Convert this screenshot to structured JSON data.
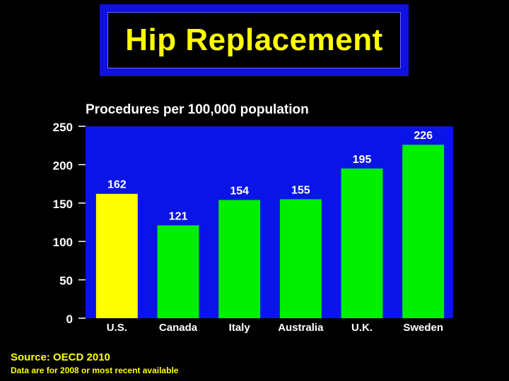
{
  "slide": {
    "title": "Hip Replacement",
    "source": "Source: OECD 2010",
    "note": "Data are for 2008 or most recent available"
  },
  "colors": {
    "background": "#000000",
    "title_frame": "#1010e0",
    "title_text": "#ffff00",
    "plot_background": "#0a14e6",
    "bar_default": "#00ee00",
    "bar_highlight": "#ffff00",
    "text": "#ffffff"
  },
  "chart_data": {
    "type": "bar",
    "title": "Procedures per 100,000 population",
    "xlabel": "",
    "ylabel": "",
    "categories": [
      "U.S.",
      "Canada",
      "Italy",
      "Australia",
      "U.K.",
      "Sweden"
    ],
    "values": [
      162,
      121,
      154,
      155,
      195,
      226
    ],
    "data_labels": [
      "162",
      "121",
      "154",
      "155",
      "195",
      "226"
    ],
    "highlighted_category": "U.S.",
    "ylim": [
      0,
      250
    ],
    "yticks": [
      "0",
      "50",
      "100",
      "150",
      "200",
      "250"
    ],
    "grid": false,
    "legend": "none"
  }
}
